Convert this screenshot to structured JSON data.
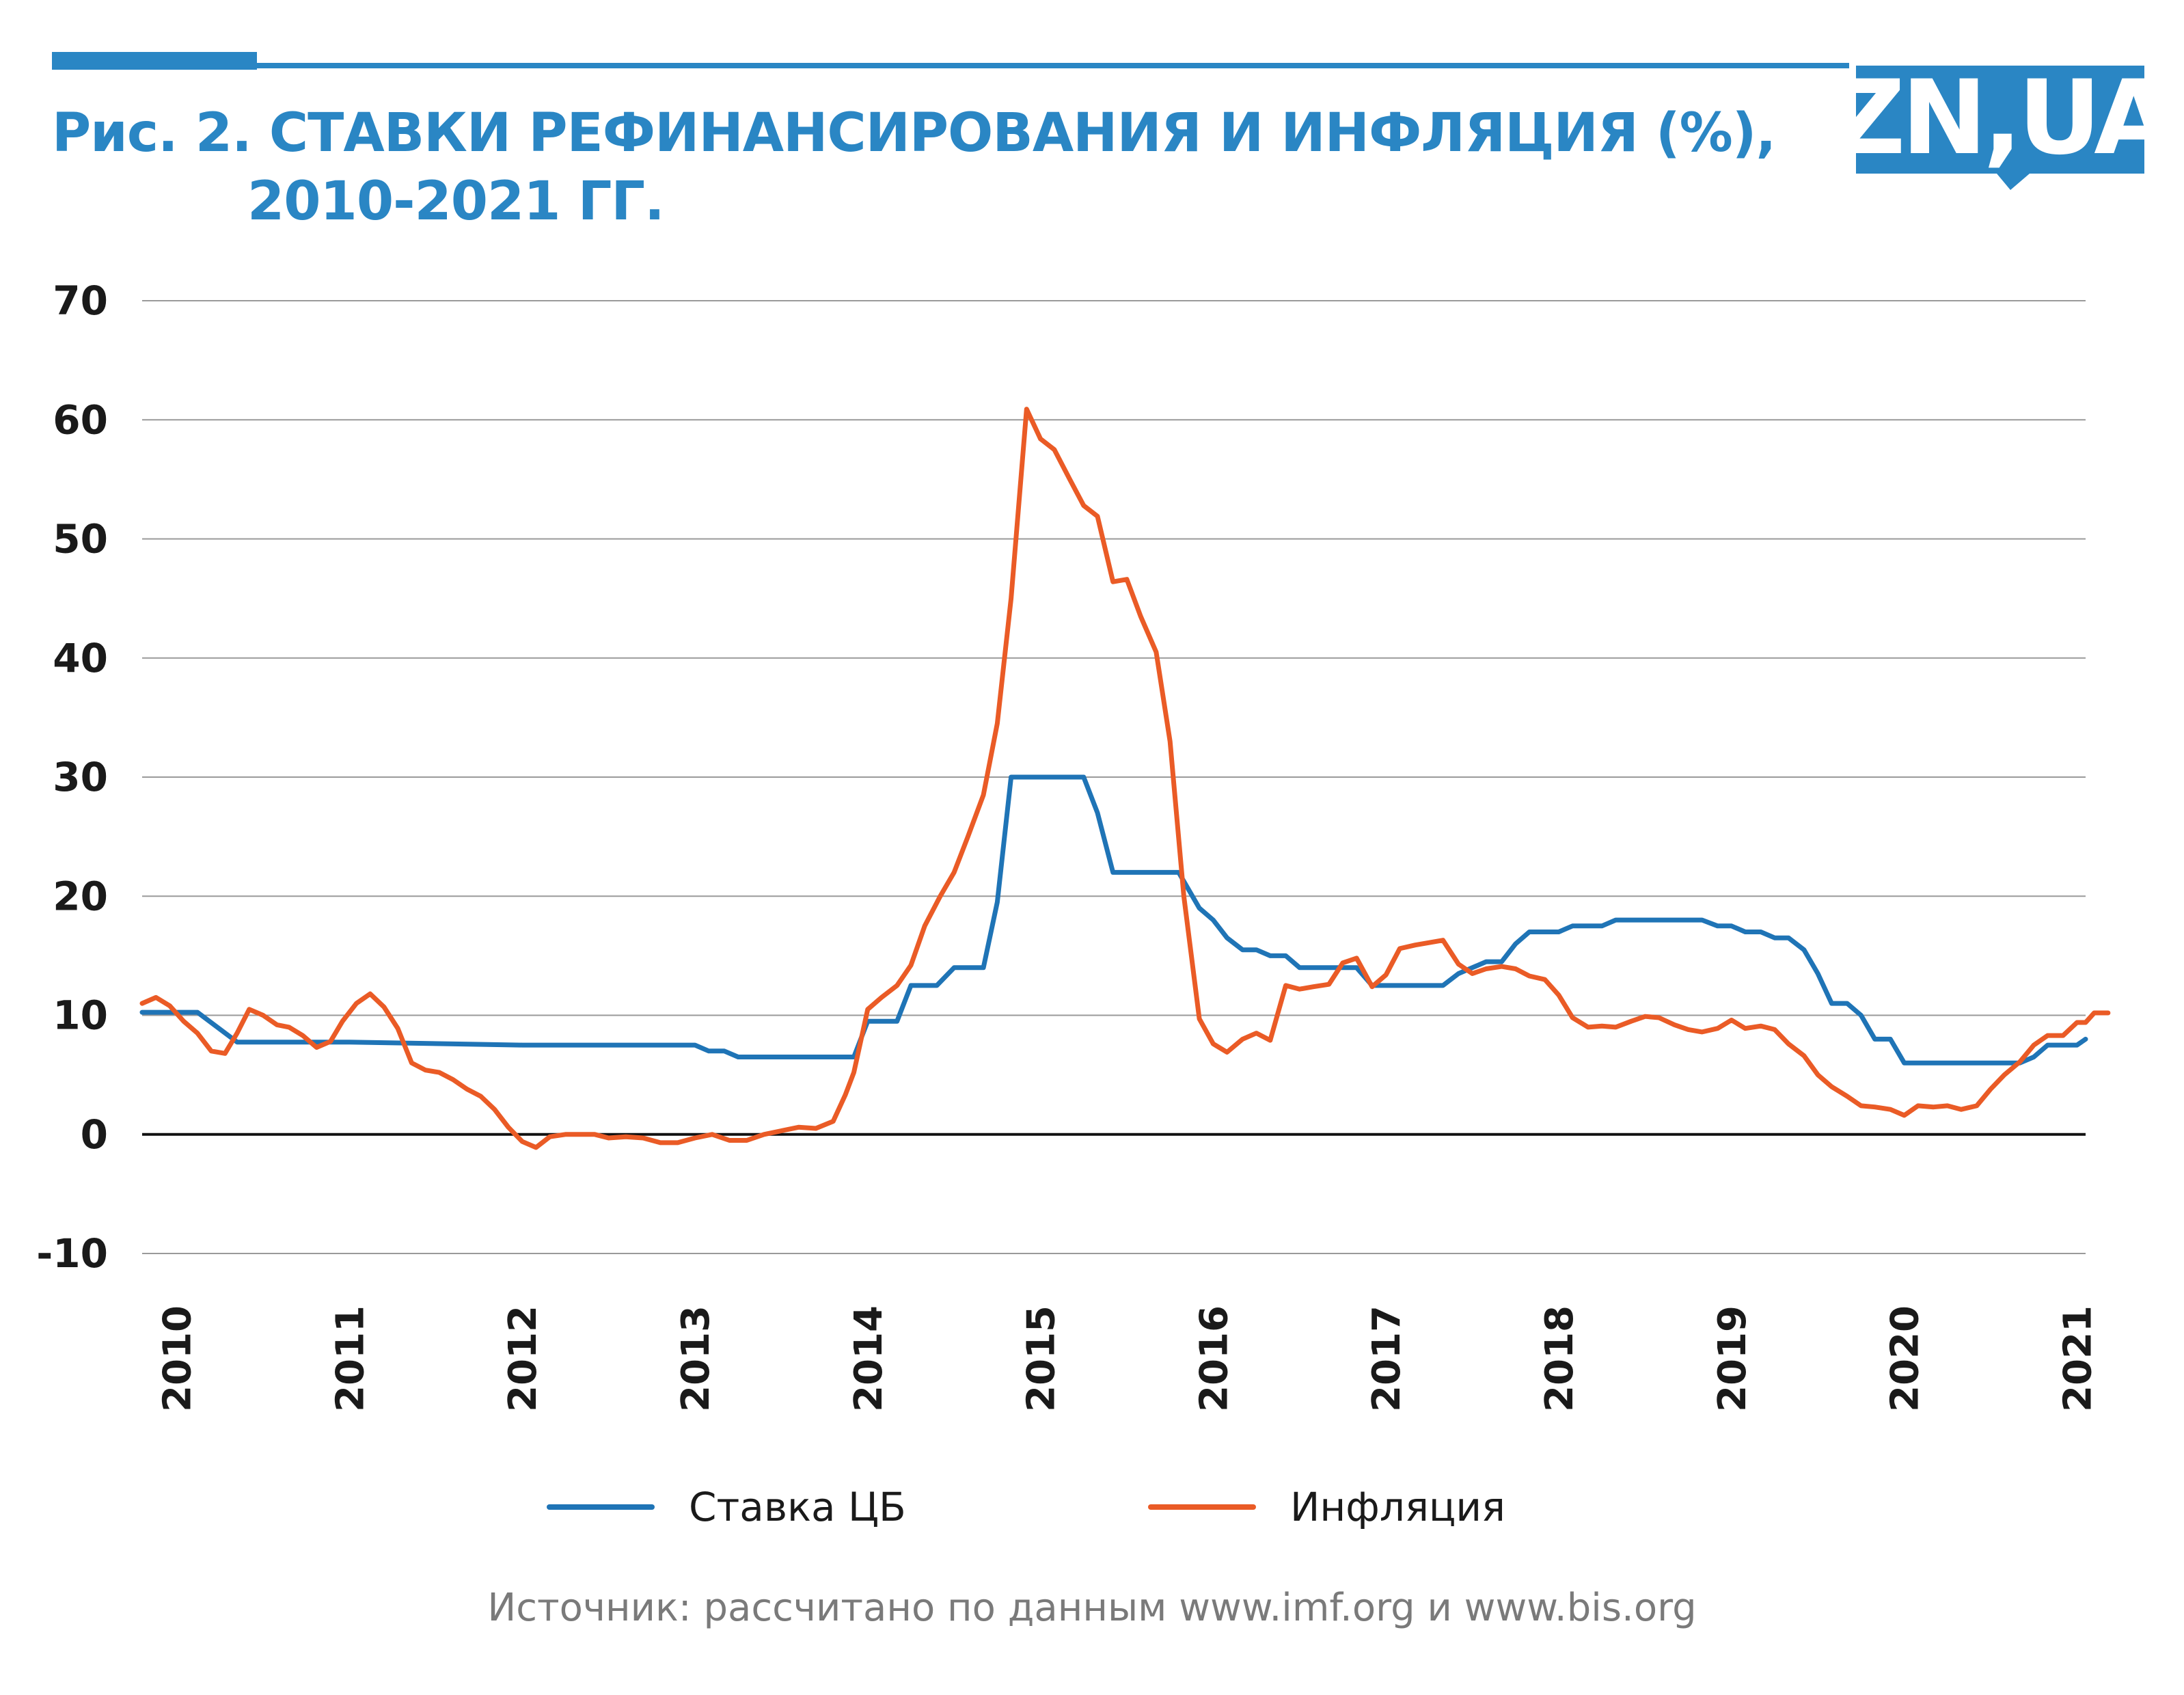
{
  "header": {
    "title_line1": "Рис. 2. СТАВКИ РЕФИНАНСИРОВАНИЯ И ИНФЛЯЦИЯ (%),",
    "title_line2": "2010-2021 ГГ.",
    "logo_text": "ZN,UA",
    "accent_color": "#2a86c4"
  },
  "source": "Источник: рассчитано по данным www.imf.org и www.bis.org",
  "chart_data": {
    "type": "line",
    "ylim": [
      -10,
      70
    ],
    "yticks": [
      "70",
      "60",
      "50",
      "40",
      "30",
      "20",
      "10",
      "0",
      "-10"
    ],
    "ytick_values": [
      70,
      60,
      50,
      40,
      30,
      20,
      10,
      0,
      -10
    ],
    "xlim": [
      2009.8,
      2021.05
    ],
    "xticks": [
      "2010",
      "2011",
      "2012",
      "2013",
      "2014",
      "2015",
      "2016",
      "2017",
      "2018",
      "2019",
      "2020",
      "2021"
    ],
    "xtick_values": [
      2010,
      2011,
      2012,
      2013,
      2014,
      2015,
      2016,
      2017,
      2018,
      2019,
      2020,
      2021
    ],
    "grid": true,
    "legend_position": "bottom",
    "series": [
      {
        "name": "Ставка ЦБ",
        "color": "#1f74b6",
        "points": [
          [
            2009.8,
            10.25
          ],
          [
            2010.12,
            10.25
          ],
          [
            2010.35,
            7.75
          ],
          [
            2010.5,
            7.75
          ],
          [
            2011.0,
            7.75
          ],
          [
            2012.0,
            7.5
          ],
          [
            2012.5,
            7.5
          ],
          [
            2012.92,
            7.5
          ],
          [
            2013.0,
            7.5
          ],
          [
            2013.08,
            7.0
          ],
          [
            2013.17,
            7.0
          ],
          [
            2013.25,
            6.5
          ],
          [
            2013.92,
            6.5
          ],
          [
            2014.0,
            9.5
          ],
          [
            2014.17,
            9.5
          ],
          [
            2014.25,
            12.5
          ],
          [
            2014.4,
            12.5
          ],
          [
            2014.5,
            14.0
          ],
          [
            2014.67,
            14.0
          ],
          [
            2014.75,
            19.5
          ],
          [
            2014.83,
            30.0
          ],
          [
            2015.25,
            30.0
          ],
          [
            2015.33,
            27.0
          ],
          [
            2015.42,
            22.0
          ],
          [
            2015.8,
            22.0
          ],
          [
            2015.92,
            19.0
          ],
          [
            2016.0,
            18.0
          ],
          [
            2016.08,
            16.5
          ],
          [
            2016.17,
            15.5
          ],
          [
            2016.25,
            15.5
          ],
          [
            2016.33,
            15.0
          ],
          [
            2016.42,
            15.0
          ],
          [
            2016.5,
            14.0
          ],
          [
            2016.83,
            14.0
          ],
          [
            2016.92,
            12.5
          ],
          [
            2017.0,
            12.5
          ],
          [
            2017.33,
            12.5
          ],
          [
            2017.42,
            13.5
          ],
          [
            2017.58,
            14.5
          ],
          [
            2017.67,
            14.5
          ],
          [
            2017.75,
            16.0
          ],
          [
            2017.83,
            17.0
          ],
          [
            2018.0,
            17.0
          ],
          [
            2018.08,
            17.5
          ],
          [
            2018.25,
            17.5
          ],
          [
            2018.33,
            18.0
          ],
          [
            2018.83,
            18.0
          ],
          [
            2018.92,
            17.5
          ],
          [
            2019.0,
            17.5
          ],
          [
            2019.08,
            17.0
          ],
          [
            2019.17,
            17.0
          ],
          [
            2019.25,
            16.5
          ],
          [
            2019.33,
            16.5
          ],
          [
            2019.42,
            15.5
          ],
          [
            2019.5,
            13.5
          ],
          [
            2019.58,
            11.0
          ],
          [
            2019.67,
            11.0
          ],
          [
            2019.75,
            10.0
          ],
          [
            2019.83,
            8.0
          ],
          [
            2019.92,
            8.0
          ],
          [
            2020.0,
            6.0
          ],
          [
            2020.6,
            6.0
          ],
          [
            2020.67,
            6.0
          ],
          [
            2020.75,
            6.5
          ],
          [
            2020.83,
            7.5
          ],
          [
            2021.0,
            7.5
          ],
          [
            2021.05,
            8.0
          ]
        ]
      },
      {
        "name": "Инфляция",
        "color": "#ea5b26",
        "points": [
          [
            2009.8,
            11.0
          ],
          [
            2009.88,
            11.5
          ],
          [
            2009.96,
            10.8
          ],
          [
            2010.04,
            9.5
          ],
          [
            2010.12,
            8.5
          ],
          [
            2010.2,
            7.0
          ],
          [
            2010.28,
            6.8
          ],
          [
            2010.35,
            8.5
          ],
          [
            2010.42,
            10.5
          ],
          [
            2010.5,
            10.0
          ],
          [
            2010.58,
            9.2
          ],
          [
            2010.65,
            9.0
          ],
          [
            2010.73,
            8.3
          ],
          [
            2010.81,
            7.3
          ],
          [
            2010.89,
            7.8
          ],
          [
            2010.96,
            9.5
          ],
          [
            2011.04,
            11.0
          ],
          [
            2011.12,
            11.8
          ],
          [
            2011.2,
            10.7
          ],
          [
            2011.28,
            8.9
          ],
          [
            2011.36,
            6.0
          ],
          [
            2011.44,
            5.4
          ],
          [
            2011.52,
            5.2
          ],
          [
            2011.6,
            4.6
          ],
          [
            2011.68,
            3.8
          ],
          [
            2011.76,
            3.2
          ],
          [
            2011.84,
            2.1
          ],
          [
            2011.92,
            0.6
          ],
          [
            2012.0,
            -0.6
          ],
          [
            2012.08,
            -1.1
          ],
          [
            2012.16,
            -0.2
          ],
          [
            2012.25,
            0.0
          ],
          [
            2012.35,
            0.0
          ],
          [
            2012.42,
            0.0
          ],
          [
            2012.5,
            -0.3
          ],
          [
            2012.6,
            -0.2
          ],
          [
            2012.7,
            -0.3
          ],
          [
            2012.8,
            -0.7
          ],
          [
            2012.9,
            -0.7
          ],
          [
            2013.0,
            -0.3
          ],
          [
            2013.1,
            0.0
          ],
          [
            2013.2,
            -0.5
          ],
          [
            2013.3,
            -0.5
          ],
          [
            2013.4,
            0.0
          ],
          [
            2013.5,
            0.3
          ],
          [
            2013.6,
            0.6
          ],
          [
            2013.7,
            0.5
          ],
          [
            2013.8,
            1.1
          ],
          [
            2013.87,
            3.3
          ],
          [
            2013.92,
            5.2
          ],
          [
            2014.0,
            10.5
          ],
          [
            2014.08,
            11.5
          ],
          [
            2014.17,
            12.5
          ],
          [
            2014.25,
            14.2
          ],
          [
            2014.33,
            17.5
          ],
          [
            2014.42,
            20.0
          ],
          [
            2014.5,
            22.0
          ],
          [
            2014.58,
            25.0
          ],
          [
            2014.67,
            28.5
          ],
          [
            2014.75,
            34.5
          ],
          [
            2014.83,
            45.0
          ],
          [
            2014.92,
            60.9
          ],
          [
            2015.0,
            58.4
          ],
          [
            2015.08,
            57.5
          ],
          [
            2015.17,
            55.0
          ],
          [
            2015.25,
            52.8
          ],
          [
            2015.33,
            51.9
          ],
          [
            2015.42,
            46.4
          ],
          [
            2015.5,
            46.6
          ],
          [
            2015.58,
            43.5
          ],
          [
            2015.67,
            40.5
          ],
          [
            2015.75,
            33.0
          ],
          [
            2015.83,
            20.0
          ],
          [
            2015.92,
            9.7
          ],
          [
            2016.0,
            7.6
          ],
          [
            2016.08,
            6.9
          ],
          [
            2016.17,
            8.0
          ],
          [
            2016.25,
            8.5
          ],
          [
            2016.33,
            7.9
          ],
          [
            2016.42,
            12.5
          ],
          [
            2016.5,
            12.2
          ],
          [
            2016.58,
            12.4
          ],
          [
            2016.67,
            12.6
          ],
          [
            2016.75,
            14.4
          ],
          [
            2016.83,
            14.8
          ],
          [
            2016.92,
            12.4
          ],
          [
            2017.0,
            13.4
          ],
          [
            2017.08,
            15.6
          ],
          [
            2017.17,
            15.9
          ],
          [
            2017.25,
            16.1
          ],
          [
            2017.33,
            16.3
          ],
          [
            2017.42,
            14.3
          ],
          [
            2017.5,
            13.5
          ],
          [
            2017.58,
            13.9
          ],
          [
            2017.67,
            14.1
          ],
          [
            2017.75,
            13.9
          ],
          [
            2017.83,
            13.3
          ],
          [
            2017.92,
            13.0
          ],
          [
            2018.0,
            11.7
          ],
          [
            2018.08,
            9.8
          ],
          [
            2018.17,
            9.0
          ],
          [
            2018.25,
            9.1
          ],
          [
            2018.33,
            9.0
          ],
          [
            2018.42,
            9.5
          ],
          [
            2018.5,
            9.9
          ],
          [
            2018.58,
            9.8
          ],
          [
            2018.67,
            9.2
          ],
          [
            2018.75,
            8.8
          ],
          [
            2018.83,
            8.6
          ],
          [
            2018.92,
            8.9
          ],
          [
            2019.0,
            9.6
          ],
          [
            2019.08,
            8.9
          ],
          [
            2019.17,
            9.1
          ],
          [
            2019.25,
            8.8
          ],
          [
            2019.33,
            7.6
          ],
          [
            2019.42,
            6.6
          ],
          [
            2019.5,
            5.0
          ],
          [
            2019.58,
            4.0
          ],
          [
            2019.67,
            3.2
          ],
          [
            2019.75,
            2.4
          ],
          [
            2019.83,
            2.3
          ],
          [
            2019.92,
            2.1
          ],
          [
            2020.0,
            1.6
          ],
          [
            2020.08,
            2.4
          ],
          [
            2020.17,
            2.3
          ],
          [
            2020.25,
            2.4
          ],
          [
            2020.33,
            2.1
          ],
          [
            2020.42,
            2.4
          ],
          [
            2020.5,
            3.8
          ],
          [
            2020.58,
            5.0
          ],
          [
            2020.67,
            6.1
          ],
          [
            2020.75,
            7.5
          ],
          [
            2020.83,
            8.3
          ],
          [
            2020.92,
            8.3
          ],
          [
            2021.0,
            9.4
          ],
          [
            2021.05,
            9.4
          ],
          [
            2021.1,
            10.2
          ],
          [
            2021.18,
            10.2
          ]
        ]
      }
    ]
  }
}
